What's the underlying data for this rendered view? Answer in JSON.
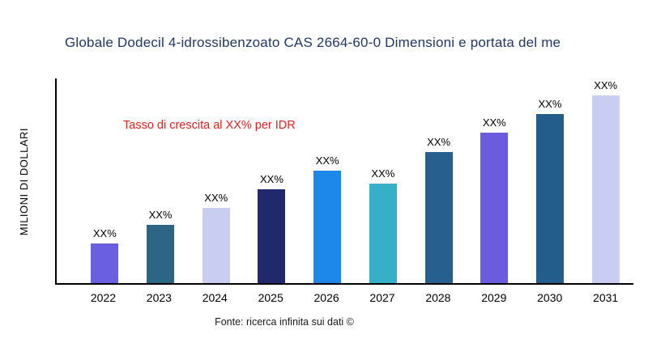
{
  "title": "Globale Dodecil 4-idrossibenzoato CAS 2664-60-0 Dimensioni e portata del me",
  "annotation": "Tasso di crescita al XX% per IDR",
  "annotation_color": "#e62020",
  "source": "Fonte: ricerca infinita sui dati ©",
  "chart_data": {
    "type": "bar",
    "title": "Globale Dodecil 4-idrossibenzoato CAS 2664-60-0 Dimensioni e portata del me",
    "xlabel": "",
    "ylabel": "MILIONI DI DOLLARI",
    "categories": [
      "2022",
      "2023",
      "2024",
      "2025",
      "2026",
      "2027",
      "2028",
      "2029",
      "2030",
      "2031"
    ],
    "values": [
      21,
      31,
      40,
      50,
      60,
      53,
      70,
      80,
      90,
      100
    ],
    "bar_labels": [
      "XX%",
      "XX%",
      "XX%",
      "XX%",
      "XX%",
      "XX%",
      "XX%",
      "XX%",
      "XX%",
      "XX%"
    ],
    "colors": [
      "#6a5fe0",
      "#2d6585",
      "#c9cdf1",
      "#20296b",
      "#1e88e8",
      "#36b0c9",
      "#27608f",
      "#6a5cdd",
      "#235d8c",
      "#c9cdf1"
    ],
    "ylim": [
      0,
      100
    ],
    "grid": false,
    "legend": "none",
    "annotations": [
      "Tasso di crescita al XX% per IDR"
    ]
  }
}
